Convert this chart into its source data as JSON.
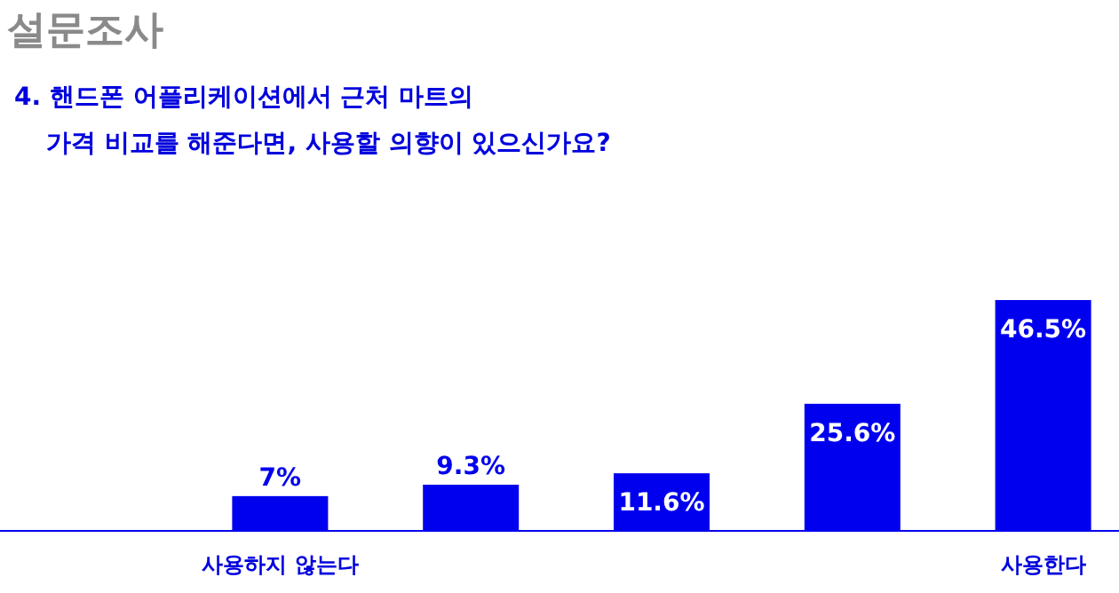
{
  "chart_data": {
    "type": "bar",
    "title": "설문조사",
    "subtitle": "4. 핸드폰 어플리케이션에서 근처 마트의\n가격 비교를 해준다면, 사용할 의향이 있으신가요?",
    "categories": [
      "사용하지 않는다",
      null,
      null,
      null,
      "사용한다"
    ],
    "values": [
      7,
      9.3,
      11.6,
      25.6,
      46.5
    ],
    "value_labels": [
      "7%",
      "9.3%",
      "11.6%",
      "25.6%",
      "46.5%"
    ],
    "color": "#0000ee"
  }
}
